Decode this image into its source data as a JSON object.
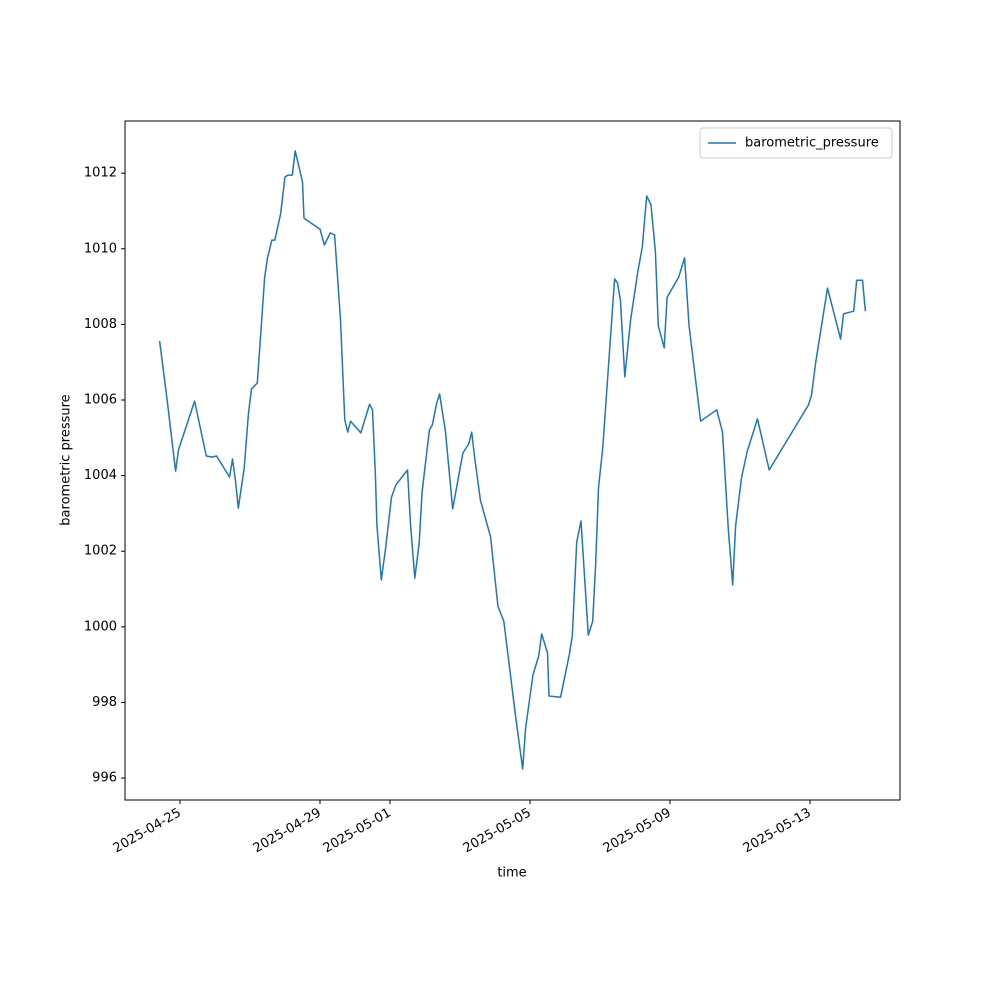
{
  "chart_data": {
    "type": "line",
    "x_label": "time",
    "y_label": "barometric pressure",
    "legend": "upper right",
    "xlim": [
      "2025-04-23T10:17",
      "2025-05-15T13:43"
    ],
    "xticks": [
      "2025-04-25",
      "2025-04-29",
      "2025-05-01",
      "2025-05-05",
      "2025-05-09",
      "2025-05-13"
    ],
    "ylim": [
      995.42,
      1013.38
    ],
    "yticks": [
      996,
      998,
      1000,
      1002,
      1004,
      1006,
      1008,
      1010,
      1012
    ],
    "x": [
      "2025-04-24T10:00",
      "2025-04-24T15:00",
      "2025-04-24T21:00",
      "2025-04-24T23:00",
      "2025-04-25T10:00",
      "2025-04-25T18:00",
      "2025-04-25T22:00",
      "2025-04-26T01:00",
      "2025-04-26T10:00",
      "2025-04-26T12:00",
      "2025-04-26T14:00",
      "2025-04-26T16:00",
      "2025-04-26T20:00",
      "2025-04-26T23:00",
      "2025-04-27T01:00",
      "2025-04-27T05:00",
      "2025-04-27T10:00",
      "2025-04-27T12:00",
      "2025-04-27T15:00",
      "2025-04-27T17:00",
      "2025-04-27T21:00",
      "2025-04-28T00:00",
      "2025-04-28T02:00",
      "2025-04-28T05:00",
      "2025-04-28T07:00",
      "2025-04-28T12:00",
      "2025-04-28T13:00",
      "2025-04-29T00:00",
      "2025-04-29T03:00",
      "2025-04-29T07:00",
      "2025-04-29T10:00",
      "2025-04-29T14:00",
      "2025-04-29T17:00",
      "2025-04-29T19:00",
      "2025-04-29T21:00",
      "2025-04-30T04:00",
      "2025-04-30T10:00",
      "2025-04-30T12:00",
      "2025-04-30T14:00",
      "2025-04-30T15:00",
      "2025-04-30T18:00",
      "2025-04-30T21:00",
      "2025-05-01T01:00",
      "2025-05-01T04:00",
      "2025-05-01T12:00",
      "2025-05-01T14:00",
      "2025-05-01T17:00",
      "2025-05-01T20:00",
      "2025-05-01T22:00",
      "2025-05-02T03:00",
      "2025-05-02T05:00",
      "2025-05-02T08:00",
      "2025-05-02T10:00",
      "2025-05-02T14:00",
      "2025-05-02T19:00",
      "2025-05-03T02:00",
      "2025-05-03T06:00",
      "2025-05-03T08:00",
      "2025-05-03T10:00",
      "2025-05-03T14:00",
      "2025-05-03T21:00",
      "2025-05-04T02:00",
      "2025-05-04T06:00",
      "2025-05-04T14:00",
      "2025-05-04T19:00",
      "2025-05-04T21:00",
      "2025-05-05T02:00",
      "2025-05-05T06:00",
      "2025-05-05T08:00",
      "2025-05-05T12:00",
      "2025-05-05T13:00",
      "2025-05-05T21:00",
      "2025-05-06T03:00",
      "2025-05-06T05:00",
      "2025-05-06T08:00",
      "2025-05-06T11:00",
      "2025-05-06T14:00",
      "2025-05-06T16:00",
      "2025-05-06T19:00",
      "2025-05-06T21:00",
      "2025-05-06T23:00",
      "2025-05-07T02:00",
      "2025-05-07T06:00",
      "2025-05-07T10:00",
      "2025-05-07T12:00",
      "2025-05-07T14:00",
      "2025-05-07T17:00",
      "2025-05-07T21:00",
      "2025-05-08T02:00",
      "2025-05-08T05:00",
      "2025-05-08T08:00",
      "2025-05-08T11:00",
      "2025-05-08T14:00",
      "2025-05-08T16:00",
      "2025-05-08T20:00",
      "2025-05-08T22:00",
      "2025-05-09T06:00",
      "2025-05-09T10:00",
      "2025-05-09T13:00",
      "2025-05-09T21:00",
      "2025-05-10T08:00",
      "2025-05-10T12:00",
      "2025-05-10T16:00",
      "2025-05-10T19:00",
      "2025-05-10T21:00",
      "2025-05-11T01:00",
      "2025-05-11T05:00",
      "2025-05-11T12:00",
      "2025-05-11T20:00",
      "2025-05-12T23:00",
      "2025-05-13T01:00",
      "2025-05-13T04:00",
      "2025-05-13T12:00",
      "2025-05-13T21:00",
      "2025-05-13T23:00",
      "2025-05-14T06:00",
      "2025-05-14T08:00",
      "2025-05-14T12:00",
      "2025-05-14T14:00"
    ],
    "series": [
      {
        "name": "barometric_pressure",
        "color": "#1f77b4",
        "values": [
          1007.56,
          1006.05,
          1004.12,
          1004.68,
          1005.97,
          1004.52,
          1004.49,
          1004.52,
          1003.96,
          1004.44,
          1003.88,
          1003.14,
          1004.2,
          1005.66,
          1006.29,
          1006.45,
          1009.23,
          1009.76,
          1010.23,
          1010.23,
          1010.92,
          1011.9,
          1011.95,
          1011.95,
          1012.59,
          1011.77,
          1010.81,
          1010.52,
          1010.1,
          1010.42,
          1010.37,
          1008.17,
          1005.47,
          1005.15,
          1005.44,
          1005.13,
          1005.89,
          1005.74,
          1004.02,
          1002.69,
          1001.24,
          1002.08,
          1003.43,
          1003.75,
          1004.15,
          1002.75,
          1001.29,
          1002.22,
          1003.57,
          1005.21,
          1005.34,
          1005.92,
          1006.16,
          1005.18,
          1003.12,
          1004.6,
          1004.84,
          1005.15,
          1004.49,
          1003.35,
          1002.38,
          1000.55,
          1000.15,
          997.67,
          996.24,
          997.32,
          998.72,
          999.23,
          999.81,
          999.31,
          998.17,
          998.14,
          999.28,
          999.76,
          1002.24,
          1002.8,
          1000.97,
          999.78,
          1000.15,
          1001.63,
          1003.67,
          1004.78,
          1006.98,
          1009.2,
          1009.1,
          1008.65,
          1006.61,
          1008.12,
          1009.41,
          1010.05,
          1011.4,
          1011.16,
          1009.92,
          1007.96,
          1007.38,
          1008.72,
          1009.25,
          1009.76,
          1007.98,
          1005.44,
          1005.74,
          1005.15,
          1002.59,
          1001.11,
          1002.67,
          1003.94,
          1004.65,
          1005.5,
          1004.15,
          1005.87,
          1006.13,
          1007.01,
          1008.96,
          1007.61,
          1008.28,
          1008.35,
          1009.17,
          1009.17,
          1008.35
        ]
      }
    ]
  }
}
